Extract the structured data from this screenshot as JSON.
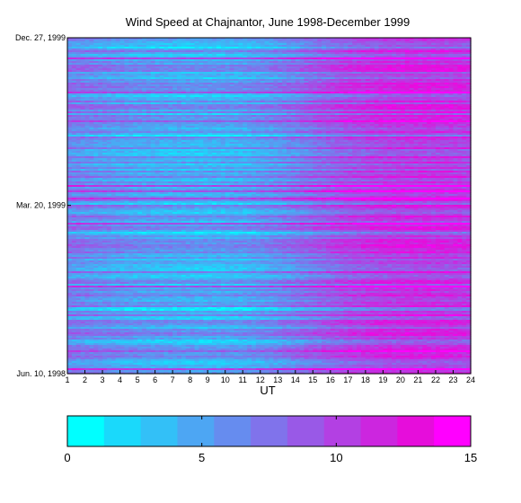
{
  "chart_data": {
    "type": "heatmap",
    "title": "Wind Speed at Chajnantor, June 1998-December 1999",
    "xlabel": "UT",
    "ylabel": "",
    "x_ticks": [
      "1",
      "2",
      "3",
      "4",
      "5",
      "6",
      "7",
      "8",
      "9",
      "10",
      "11",
      "12",
      "13",
      "14",
      "15",
      "16",
      "17",
      "18",
      "19",
      "20",
      "21",
      "22",
      "23",
      "24"
    ],
    "xlim": [
      1,
      24
    ],
    "y_ticks": [
      {
        "label": "Dec. 27, 1999",
        "date": "1999-12-27"
      },
      {
        "label": "Mar. 20, 1999",
        "date": "1999-03-20"
      },
      {
        "label": "Jun. 10, 1998",
        "date": "1998-06-10"
      }
    ],
    "ylim": [
      "1998-06-10",
      "1999-12-27"
    ],
    "colorbar": {
      "ticks": [
        "0",
        "5",
        "10",
        "15"
      ],
      "range": [
        0,
        15
      ],
      "colors": [
        "#00ffff",
        "#1ad9fb",
        "#33c0f7",
        "#4da6f3",
        "#668cef",
        "#8073eb",
        "#9959e7",
        "#b340e3",
        "#cc26df",
        "#e60ddb",
        "#ff00ff"
      ]
    },
    "profile_by_ut": [
      {
        "ut": 1,
        "speed": 6.8
      },
      {
        "ut": 3,
        "speed": 5.8
      },
      {
        "ut": 5,
        "speed": 5.0
      },
      {
        "ut": 7,
        "speed": 4.6
      },
      {
        "ut": 9,
        "speed": 4.4
      },
      {
        "ut": 11,
        "speed": 4.7
      },
      {
        "ut": 13,
        "speed": 6.0
      },
      {
        "ut": 15,
        "speed": 8.0
      },
      {
        "ut": 17,
        "speed": 9.8
      },
      {
        "ut": 19,
        "speed": 10.8
      },
      {
        "ut": 21,
        "speed": 11.2
      },
      {
        "ut": 23,
        "speed": 11.0
      },
      {
        "ut": 24,
        "speed": 10.6
      }
    ]
  }
}
